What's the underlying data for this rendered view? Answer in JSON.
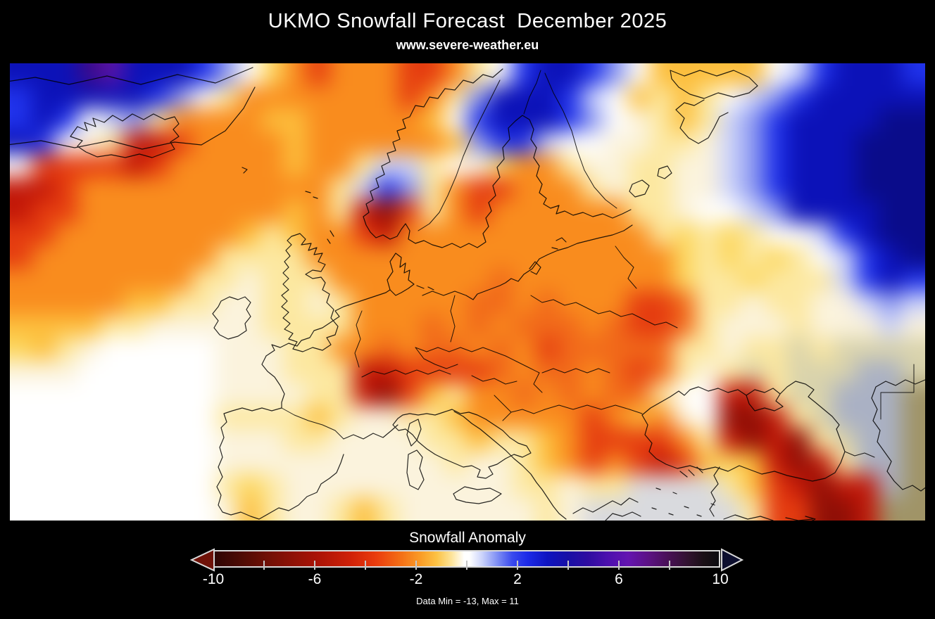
{
  "header": {
    "title": "UKMO Snowfall Forecast  December 2025",
    "subtitle": "www.severe-weather.eu"
  },
  "colorbar": {
    "label": "Snowfall Anomaly",
    "ticks": [
      "-10",
      "-6",
      "-2",
      "2",
      "6",
      "10"
    ],
    "tick_values": [
      -10,
      -6,
      -2,
      2,
      6,
      10
    ],
    "minor_ticks": [
      -8,
      -6,
      -4,
      -2,
      0,
      2,
      4,
      6,
      8
    ],
    "min": -10,
    "max": 10,
    "footer": "Data Min = -13, Max = 11",
    "arrow_left_color": "#6f1208",
    "arrow_right_color": "#0d0f2e",
    "stops": [
      [
        0,
        "#2e0503"
      ],
      [
        5,
        "#4c0b04"
      ],
      [
        12,
        "#7a1005"
      ],
      [
        20,
        "#a81306"
      ],
      [
        27,
        "#d02108"
      ],
      [
        32,
        "#ea3c0d"
      ],
      [
        37,
        "#f4701 6"
      ],
      [
        41,
        "#fa9e28"
      ],
      [
        44,
        "#fcc244"
      ],
      [
        47,
        "#fde49a"
      ],
      [
        49.5,
        "#ffffff"
      ],
      [
        50.5,
        "#ffffff"
      ],
      [
        53,
        "#ccd4fb"
      ],
      [
        56,
        "#8090f4"
      ],
      [
        59,
        "#3a4aee"
      ],
      [
        62,
        "#1c2ae8"
      ],
      [
        66,
        "#0e14c0"
      ],
      [
        70,
        "#180fa6"
      ],
      [
        74,
        "#2e0ca0"
      ],
      [
        78,
        "#4c10ae"
      ],
      [
        82,
        "#6414b0"
      ],
      [
        86,
        "#5c1284"
      ],
      [
        90,
        "#481055"
      ],
      [
        94,
        "#30122e"
      ],
      [
        97,
        "#1a1016"
      ],
      [
        100,
        "#0c0c10"
      ]
    ]
  },
  "map_field": {
    "cell": 32.5,
    "cols": 40,
    "rows": 20,
    "blur": 15,
    "palette": {
      "W": "#ffffff",
      "w": "#fbf3dd",
      "y": "#fce8a0",
      "Y": "#fcd75e",
      "G": "#fcbe3c",
      "O": "#f98c1e",
      "Q": "#f1691a",
      "R": "#e53c10",
      "r": "#c21708",
      "M": "#8f0f06",
      "P": "#5c14a8",
      "N": "#3c0a86",
      "E": "#0a0c8a",
      "D": "#0c12b8",
      "B": "#2033ec",
      "L": "#8e9af0",
      "l": "#ccd3fa",
      "S": "#d9dade",
      "A": "#aab1c4",
      "g": "#d9d3ac",
      "t": "#a09467"
    },
    "grid": [
      "DDDNPDDDBLWYOROOORROyWBDDBLWGGGGGWlBDDDB",
      "BDDDDDBLWyOOOOOOOROyLDDDBlWGyGyWlLBDDDDD",
      "BDBWlLyOOOOGGOOOOOGWBDDDBLWwyGylLBDDDDEE",
      "DBWwyrrROOOOGOOOOOOGLBBlWWwwyywlLBDDDEEE",
      "WRRRRrROOOOOGOOyllyWwYOOywwyywwlLBDDDEEE",
      "rrROOOOOOOOOOOylBLyORROOOywyywwlLBDDDEEE",
      "rRROOOOOOOOOGOyrMRyOROOOOOOy ywWWlLDDDDEE",
      "RROOOOOOOOGyGOORrOOOOOOOOOOOyYyYyWWlBDEE",
      "ROOOOOOOOyyyyOOOOOOOOOOOOOOOOYyYyYyWlBDE",
      "OOOOOOOOyywyyyOOOOOOOQOOOOOOOYyyYyyylBDB",
      "OOOOOGGyywwyywyOOOOOQQOQOOORRQyywyywwlLl",
      "GGGGyywwwwwyyyyOOOQOQOQQQOQRRQywwwywwwlw",
      "YGywWWWWWwwwyyOOQOQQOQORQQQQQyywyygygggg",
      "wwwWWWWWWwwwyyyrrRRRRQOQQOQRQywygygggAAg",
      "WWWWWWWWWwwwwyyrMRGyOOQOQOQQyWWrryggAAAt",
      "WWWWWWWWWyyyyGywwyyGOOOOOROGOwWMMrygAAAt",
      "WWWWWWWWWwwwyywwwwyyGyyGORRRROyrMrMygAAt",
      "WWWWWWWWWwwwwwwwwwwywwyGORORrRGYGrMryAAt",
      "WWWWWWWWWyYywwwwwwwwwwyywyySSSSyGRrMrrAt",
      "WWWWWWWWWwGywwyGywwwwwwywSSSSSSSyRRMMrtt"
    ]
  }
}
